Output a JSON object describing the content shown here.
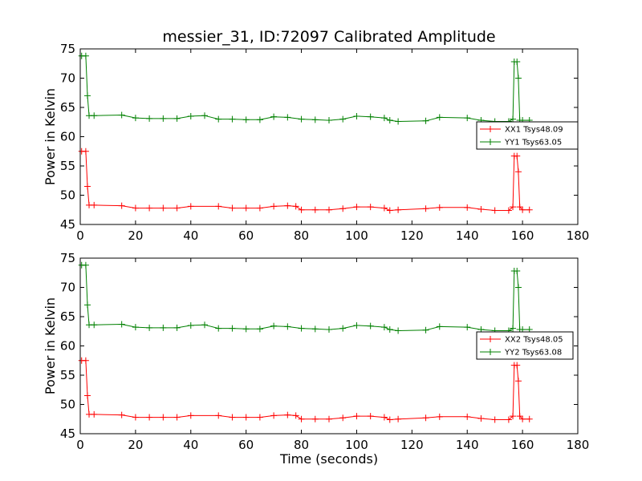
{
  "figure": {
    "title": "messier_31, ID:72097 Calibrated Amplitude"
  },
  "chart_data": [
    {
      "type": "line",
      "title": "messier_31, ID:72097 Calibrated Amplitude",
      "xlabel": "",
      "ylabel": "Power in Kelvin",
      "xlim": [
        0,
        180
      ],
      "ylim": [
        45,
        75
      ],
      "xticks": [
        0,
        20,
        40,
        60,
        80,
        100,
        120,
        140,
        160,
        180
      ],
      "yticks": [
        45,
        50,
        55,
        60,
        65,
        70,
        75
      ],
      "legend_position": "center-right",
      "marker": "+",
      "series": [
        {
          "name": "XX1 Tsys48.09",
          "color": "#ff0000",
          "x": [
            0.5,
            2,
            2.6,
            3.2,
            5,
            15,
            20,
            25,
            30,
            35,
            40,
            50,
            55,
            60,
            65,
            70,
            75,
            78,
            80,
            85,
            90,
            95,
            100,
            105,
            110,
            112,
            115,
            125,
            130,
            140,
            145,
            150,
            155,
            156.5,
            157,
            158,
            158.5,
            159,
            160,
            162.5
          ],
          "y": [
            57.5,
            57.5,
            51.5,
            48.3,
            48.3,
            48.2,
            47.8,
            47.8,
            47.8,
            47.8,
            48.1,
            48.1,
            47.8,
            47.8,
            47.8,
            48.1,
            48.2,
            48.1,
            47.5,
            47.5,
            47.5,
            47.7,
            48.0,
            48.0,
            47.8,
            47.4,
            47.5,
            47.7,
            47.9,
            47.9,
            47.6,
            47.4,
            47.4,
            48.0,
            56.7,
            56.7,
            54.0,
            48.0,
            47.5,
            47.5
          ]
        },
        {
          "name": "YY1 Tsys63.05",
          "color": "#008000",
          "x": [
            0.5,
            2,
            2.6,
            3.2,
            5,
            15,
            20,
            25,
            30,
            35,
            40,
            45,
            50,
            55,
            60,
            65,
            70,
            75,
            80,
            85,
            90,
            95,
            100,
            105,
            110,
            112,
            115,
            125,
            130,
            140,
            145,
            150,
            155,
            156.5,
            157,
            158,
            158.5,
            159,
            160,
            162.5
          ],
          "y": [
            73.8,
            73.8,
            67.0,
            63.6,
            63.6,
            63.7,
            63.2,
            63.1,
            63.1,
            63.1,
            63.5,
            63.6,
            63.0,
            63.0,
            62.9,
            62.9,
            63.4,
            63.3,
            63.0,
            62.9,
            62.8,
            63.0,
            63.5,
            63.4,
            63.2,
            62.8,
            62.6,
            62.7,
            63.3,
            63.2,
            62.8,
            62.6,
            62.6,
            63.0,
            72.8,
            72.8,
            70.0,
            62.8,
            62.8,
            62.8
          ]
        }
      ]
    },
    {
      "type": "line",
      "title": "",
      "xlabel": "Time (seconds)",
      "ylabel": "Power in Kelvin",
      "xlim": [
        0,
        180
      ],
      "ylim": [
        45,
        75
      ],
      "xticks": [
        0,
        20,
        40,
        60,
        80,
        100,
        120,
        140,
        160,
        180
      ],
      "yticks": [
        45,
        50,
        55,
        60,
        65,
        70,
        75
      ],
      "legend_position": "center-right",
      "marker": "+",
      "series": [
        {
          "name": "XX2 Tsys48.05",
          "color": "#ff0000",
          "x": [
            0.5,
            2,
            2.6,
            3.2,
            5,
            15,
            20,
            25,
            30,
            35,
            40,
            50,
            55,
            60,
            65,
            70,
            75,
            78,
            80,
            85,
            90,
            95,
            100,
            105,
            110,
            112,
            115,
            125,
            130,
            140,
            145,
            150,
            155,
            156.5,
            157,
            158,
            158.5,
            159,
            160,
            162.5
          ],
          "y": [
            57.5,
            57.5,
            51.5,
            48.3,
            48.3,
            48.2,
            47.8,
            47.8,
            47.8,
            47.8,
            48.1,
            48.1,
            47.8,
            47.8,
            47.8,
            48.1,
            48.2,
            48.1,
            47.5,
            47.5,
            47.5,
            47.7,
            48.0,
            48.0,
            47.8,
            47.4,
            47.5,
            47.7,
            47.9,
            47.9,
            47.6,
            47.4,
            47.4,
            48.0,
            56.7,
            56.7,
            54.0,
            48.0,
            47.5,
            47.5
          ]
        },
        {
          "name": "YY2 Tsys63.08",
          "color": "#008000",
          "x": [
            0.5,
            2,
            2.6,
            3.2,
            5,
            15,
            20,
            25,
            30,
            35,
            40,
            45,
            50,
            55,
            60,
            65,
            70,
            75,
            80,
            85,
            90,
            95,
            100,
            105,
            110,
            112,
            115,
            125,
            130,
            140,
            145,
            150,
            155,
            156.5,
            157,
            158,
            158.5,
            159,
            160,
            162.5
          ],
          "y": [
            73.8,
            73.8,
            67.0,
            63.6,
            63.6,
            63.7,
            63.2,
            63.1,
            63.1,
            63.1,
            63.5,
            63.6,
            63.0,
            63.0,
            62.9,
            62.9,
            63.4,
            63.3,
            63.0,
            62.9,
            62.8,
            63.0,
            63.5,
            63.4,
            63.2,
            62.8,
            62.6,
            62.7,
            63.3,
            63.2,
            62.8,
            62.6,
            62.6,
            63.0,
            72.8,
            72.8,
            70.0,
            62.8,
            62.8,
            62.8
          ]
        }
      ]
    }
  ]
}
